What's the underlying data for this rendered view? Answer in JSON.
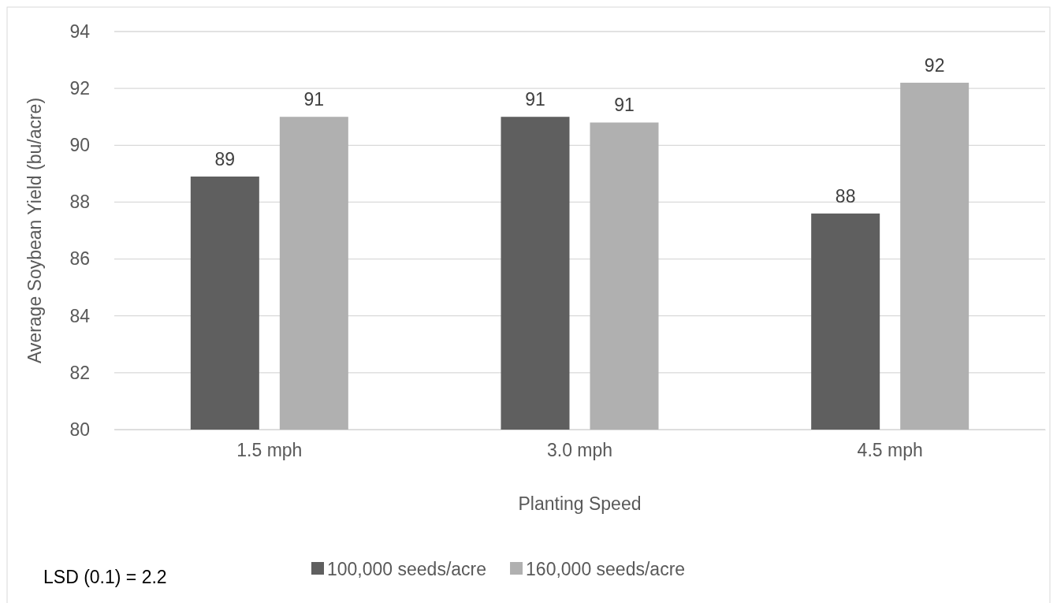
{
  "chart_data": {
    "type": "bar",
    "xlabel": "Planting Speed",
    "ylabel": "Average Soybean Yield (bu/acre)",
    "categories": [
      "1.5 mph",
      "3.0 mph",
      "4.5 mph"
    ],
    "series": [
      {
        "name": "100,000 seeds/acre",
        "color": "#5f5f5f",
        "values": [
          88.9,
          91.0,
          87.6
        ],
        "value_labels": [
          "89",
          "91",
          "88"
        ]
      },
      {
        "name": "160,000 seeds/acre",
        "color": "#b0b0b0",
        "values": [
          91.0,
          90.8,
          92.2
        ],
        "value_labels": [
          "91",
          "91",
          "92"
        ]
      }
    ],
    "ylim": [
      80,
      94
    ],
    "yticks": [
      80,
      82,
      84,
      86,
      88,
      90,
      92,
      94
    ],
    "grid": "y",
    "legend": "bottom",
    "annotations": [
      "LSD (0.1) = 2.2"
    ]
  }
}
